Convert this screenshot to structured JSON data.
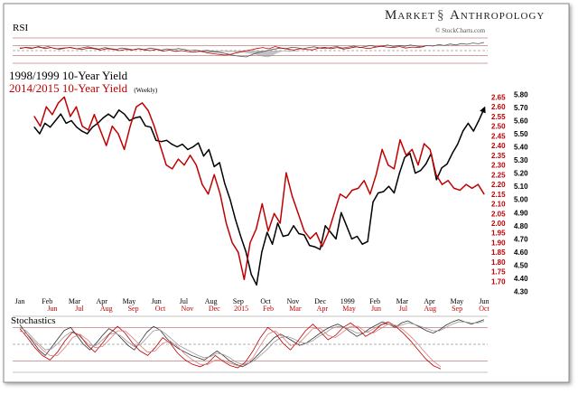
{
  "header": {
    "brand": "MARKET ANTHROPOLOGY",
    "brand_word1": "Market",
    "brand_word2": "Anthropology",
    "source": "© StockCharts.com"
  },
  "rsi_panel": {
    "label": "RSI"
  },
  "stoch_panel": {
    "label": "Stochastics"
  },
  "chart_data": {
    "type": "line",
    "title": "",
    "colors": {
      "series_1998": "#000000",
      "series_2014": "#c00000",
      "rsi_shade": "#9a9a9a",
      "stoch_ref": "#b8b8b8"
    },
    "legend": [
      {
        "text": "1998/1999 10-Year Yield",
        "color": "#000000"
      },
      {
        "text": "2014/2015 10-Year Yield",
        "note": "(Weekly)",
        "color": "#c00000"
      }
    ],
    "x_labels_1998": [
      "Jan",
      "Feb",
      "Mar",
      "Apr",
      "May",
      "Jun",
      "Jul",
      "Aug",
      "Sep",
      "Oct",
      "Nov",
      "Dec",
      "1999",
      "Feb",
      "Mar",
      "Apr",
      "May",
      "Jun"
    ],
    "x_labels_2014": [
      "Jun",
      "Jul",
      "Aug",
      "Sep",
      "Oct",
      "Nov",
      "Dec",
      "2015",
      "Feb",
      "Mar",
      "Apr",
      "May",
      "Jun",
      "Jul",
      "Aug",
      "Sep",
      "Oct"
    ],
    "y_axis_left": {
      "ticks": [
        "2.65",
        "2.60",
        "2.55",
        "2.50",
        "2.45",
        "2.40",
        "2.35",
        "2.30",
        "2.25",
        "2.20",
        "2.15",
        "2.10",
        "2.05",
        "2.00",
        "1.95",
        "1.90",
        "1.85",
        "1.80",
        "1.75",
        "1.70"
      ],
      "range": [
        1.66,
        2.68
      ]
    },
    "y_axis_right": {
      "ticks": [
        "5.80",
        "5.70",
        "5.60",
        "5.50",
        "5.40",
        "5.30",
        "5.20",
        "5.10",
        "5.00",
        "4.90",
        "4.80",
        "4.70",
        "4.60",
        "4.50",
        "4.40",
        "4.30"
      ],
      "range": [
        4.29,
        5.83
      ]
    },
    "series": [
      {
        "name": "1998/1999 10-Year Yield",
        "axis": "right",
        "x_range": [
          0,
          85
        ],
        "values": [
          5.55,
          5.5,
          5.58,
          5.55,
          5.6,
          5.65,
          5.58,
          5.6,
          5.55,
          5.52,
          5.5,
          5.55,
          5.58,
          5.62,
          5.65,
          5.62,
          5.68,
          5.65,
          5.6,
          5.62,
          5.63,
          5.56,
          5.55,
          5.45,
          5.44,
          5.45,
          5.42,
          5.4,
          5.42,
          5.38,
          5.4,
          5.43,
          5.33,
          5.38,
          5.25,
          5.28,
          5.12,
          5.0,
          4.85,
          4.72,
          4.6,
          4.43,
          4.35,
          4.6,
          4.75,
          4.66,
          4.82,
          4.72,
          4.73,
          4.8,
          4.74,
          4.73,
          4.65,
          4.64,
          4.62,
          4.8,
          4.75,
          4.7,
          4.9,
          4.8,
          4.7,
          4.72,
          4.66,
          4.68,
          4.98,
          5.05,
          5.06,
          5.1,
          5.05,
          5.2,
          5.32,
          5.35,
          5.2,
          5.22,
          5.27,
          5.35,
          5.15,
          5.24,
          5.27,
          5.35,
          5.42,
          5.52,
          5.58,
          5.52,
          5.6,
          5.69
        ],
        "end_arrow": true
      },
      {
        "name": "2014/2015 10-Year Yield",
        "axis": "left",
        "x_range": [
          0,
          75
        ],
        "values": [
          2.55,
          2.5,
          2.6,
          2.56,
          2.62,
          2.65,
          2.55,
          2.6,
          2.5,
          2.48,
          2.56,
          2.48,
          2.4,
          2.5,
          2.46,
          2.38,
          2.5,
          2.6,
          2.62,
          2.58,
          2.5,
          2.4,
          2.3,
          2.28,
          2.33,
          2.3,
          2.35,
          2.3,
          2.2,
          2.15,
          2.25,
          2.15,
          2.0,
          1.9,
          1.85,
          1.71,
          1.9,
          1.97,
          2.1,
          1.96,
          2.05,
          2.0,
          2.26,
          2.14,
          2.05,
          1.96,
          1.92,
          1.95,
          1.88,
          1.95,
          2.05,
          2.15,
          2.13,
          2.17,
          2.18,
          2.22,
          2.15,
          2.25,
          2.38,
          2.3,
          2.28,
          2.43,
          2.35,
          2.38,
          2.3,
          2.41,
          2.38,
          2.25,
          2.2,
          2.22,
          2.18,
          2.17,
          2.2,
          2.18,
          2.2,
          2.15
        ]
      }
    ],
    "rsi": {
      "levels": [
        70,
        50,
        30
      ],
      "ylim": [
        0,
        100
      ],
      "series": [
        {
          "color": "#555555",
          "values": [
            60,
            62,
            58,
            64,
            61,
            66,
            59,
            55,
            60,
            63,
            57,
            61,
            65,
            60,
            56,
            62,
            58,
            55,
            60,
            57,
            53,
            58,
            54,
            60,
            56,
            52,
            57,
            54,
            58,
            55,
            50,
            52,
            48,
            51,
            47,
            44,
            40,
            35,
            30,
            27,
            25,
            34,
            42,
            46,
            52,
            56,
            60,
            58,
            63,
            61,
            57,
            62,
            65,
            60,
            58,
            63,
            66,
            60,
            64,
            68,
            62,
            66,
            70,
            65,
            68,
            72,
            66,
            70,
            67,
            72,
            68,
            65,
            70,
            68,
            74,
            70,
            76,
            72,
            78,
            75,
            80,
            77,
            82
          ]
        },
        {
          "color": "#c00000",
          "values": [
            58,
            63,
            60,
            66,
            58,
            62,
            57,
            60,
            62,
            58,
            55,
            60,
            57,
            52,
            58,
            55,
            50,
            55,
            52,
            57,
            53,
            50,
            55,
            48,
            52,
            47,
            50,
            46,
            44,
            48,
            42,
            38,
            35,
            32,
            36,
            42,
            48,
            52,
            58,
            62,
            57,
            66,
            60,
            56,
            52,
            58,
            55,
            53,
            60,
            63,
            58,
            62,
            56,
            60,
            65,
            62,
            58,
            63,
            67,
            64,
            62,
            66,
            60,
            64,
            62,
            66
          ]
        }
      ],
      "shade_series": [
        45,
        44,
        46,
        43,
        42,
        44,
        45,
        46,
        44,
        45,
        43,
        44,
        42,
        40,
        38,
        36,
        32,
        28,
        25,
        24,
        30,
        38,
        44,
        47,
        46,
        45,
        47,
        46
      ]
    },
    "stochastics": {
      "levels": [
        80,
        50,
        20
      ],
      "ylim": [
        0,
        100
      ],
      "series": [
        {
          "color": "#333333",
          "values": [
            85,
            70,
            55,
            40,
            30,
            45,
            60,
            75,
            80,
            65,
            50,
            40,
            52,
            66,
            78,
            72,
            60,
            48,
            40,
            56,
            72,
            82,
            76,
            62,
            50,
            42,
            36,
            30,
            26,
            22,
            30,
            38,
            30,
            20,
            14,
            10,
            16,
            26,
            38,
            50,
            62,
            68,
            62,
            55,
            48,
            52,
            60,
            68,
            76,
            82,
            86,
            80,
            72,
            64,
            70,
            78,
            84,
            90,
            86,
            80,
            88,
            92,
            86,
            80,
            74,
            70,
            76,
            84,
            90,
            94,
            90,
            86,
            90,
            94
          ]
        },
        {
          "color": "#999999",
          "values": [
            80,
            74,
            62,
            50,
            40,
            42,
            52,
            64,
            72,
            68,
            58,
            48,
            48,
            58,
            68,
            70,
            64,
            54,
            46,
            50,
            62,
            74,
            76,
            68,
            58,
            48,
            42,
            36,
            30,
            26,
            28,
            34,
            32,
            26,
            18,
            14,
            16,
            22,
            32,
            42,
            54,
            62,
            64,
            60,
            54,
            52,
            56,
            64,
            70,
            78,
            82,
            80,
            76,
            70,
            70,
            74,
            80,
            86,
            86,
            82,
            84,
            88,
            86,
            82,
            78,
            74,
            74,
            80,
            86,
            90,
            90,
            88,
            88,
            91
          ]
        },
        {
          "color": "#c00000",
          "values": [
            78,
            62,
            44,
            30,
            22,
            36,
            56,
            72,
            66,
            48,
            36,
            52,
            70,
            82,
            70,
            52,
            38,
            30,
            44,
            62,
            52,
            34,
            22,
            14,
            10,
            16,
            30,
            20,
            12,
            8,
            18,
            38,
            62,
            80,
            70,
            52,
            40,
            56,
            74,
            86,
            72,
            58,
            66,
            80,
            88,
            78,
            64,
            72,
            84,
            90,
            82,
            70,
            56,
            40,
            24,
            12,
            6
          ]
        },
        {
          "color": "#d88080",
          "values": [
            74,
            68,
            54,
            40,
            30,
            30,
            44,
            62,
            68,
            58,
            44,
            46,
            60,
            74,
            74,
            62,
            48,
            36,
            38,
            52,
            56,
            46,
            32,
            22,
            14,
            14,
            22,
            22,
            16,
            12,
            14,
            26,
            48,
            68,
            74,
            62,
            48,
            50,
            64,
            78,
            78,
            66,
            62,
            72,
            82,
            82,
            72,
            70,
            78,
            86,
            84,
            76,
            64,
            50,
            34,
            20,
            10
          ]
        }
      ]
    }
  }
}
